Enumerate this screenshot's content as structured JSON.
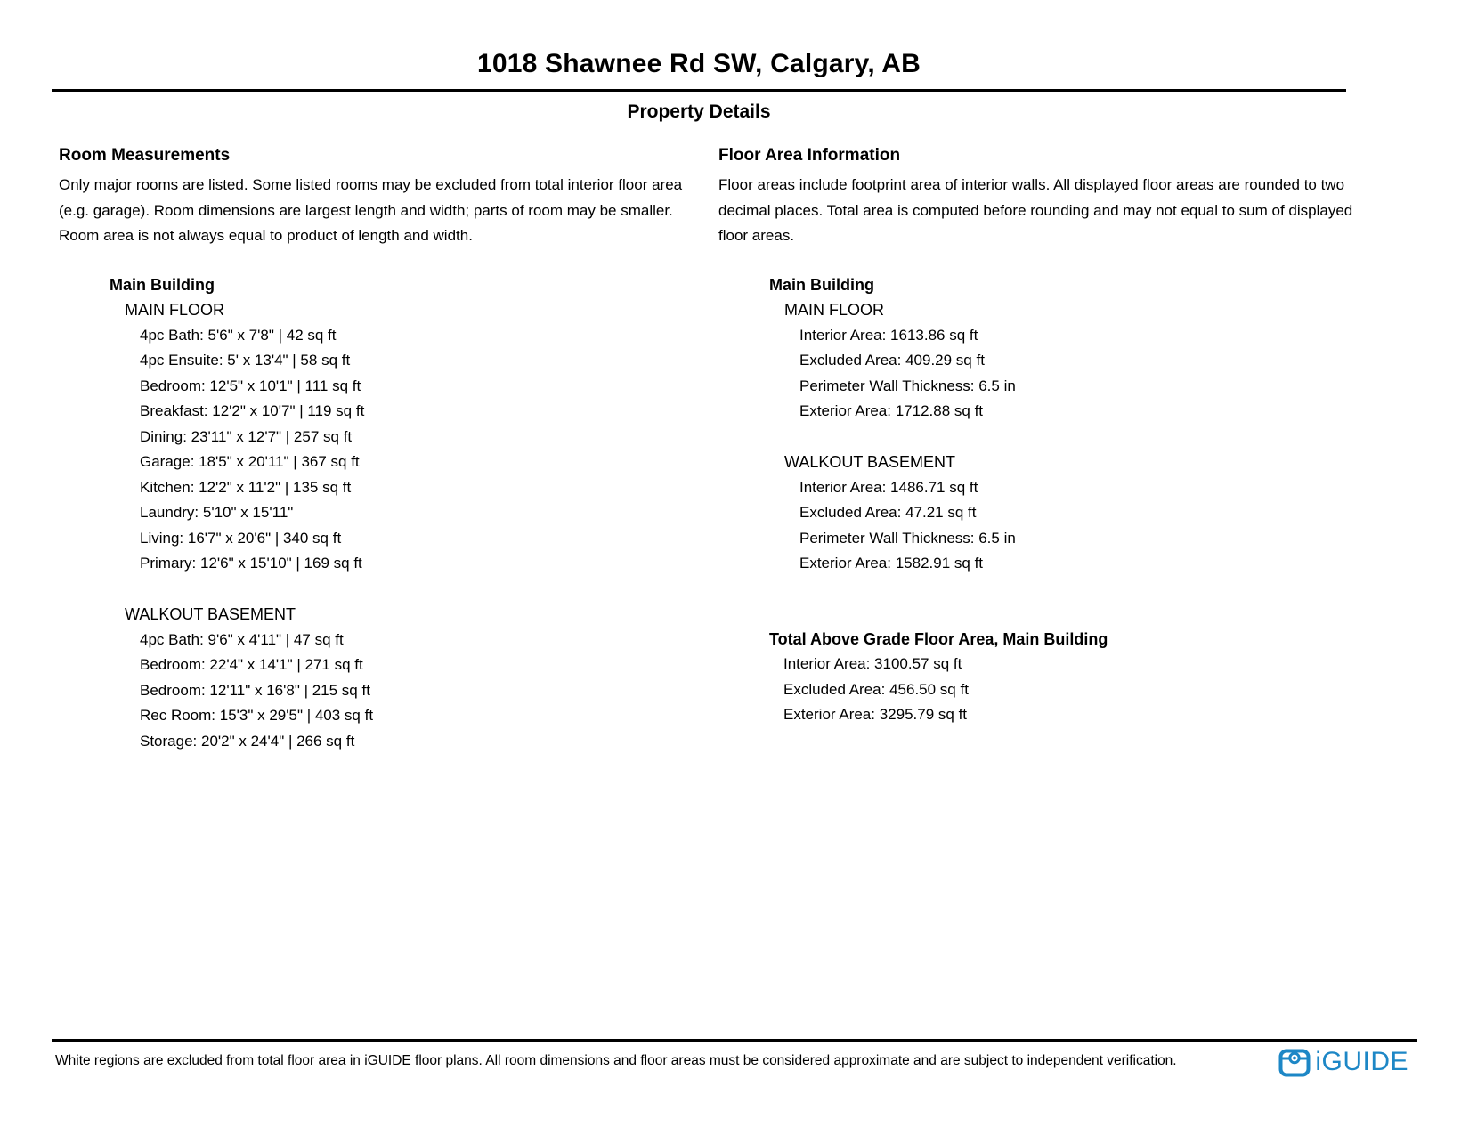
{
  "page": {
    "title": "1018 Shawnee Rd SW, Calgary, AB",
    "subtitle": "Property Details"
  },
  "room_measurements": {
    "heading": "Room Measurements",
    "description_lines": [
      "Only major rooms are listed. Some listed rooms may be excluded from total interior floor area",
      "(e.g. garage). Room dimensions are largest length and width; parts of room may be smaller.",
      "Room area is not always equal to product of length and width."
    ],
    "building": {
      "name": "Main Building",
      "floors": [
        {
          "name": "MAIN FLOOR",
          "rooms": [
            "4pc Bath: 5'6\" x 7'8\" | 42 sq ft",
            "4pc Ensuite: 5' x 13'4\" | 58 sq ft",
            "Bedroom: 12'5\" x 10'1\" | 111 sq ft",
            "Breakfast: 12'2\" x 10'7\" | 119 sq ft",
            "Dining: 23'11\" x 12'7\" | 257 sq ft",
            "Garage: 18'5\" x 20'11\" | 367 sq ft",
            "Kitchen: 12'2\" x 11'2\" | 135 sq ft",
            "Laundry: 5'10\" x 15'11\"",
            "Living: 16'7\" x 20'6\" | 340 sq ft",
            "Primary: 12'6\" x 15'10\" | 169 sq ft"
          ]
        },
        {
          "name": "WALKOUT BASEMENT",
          "rooms": [
            "4pc Bath: 9'6\" x 4'11\" | 47 sq ft",
            "Bedroom: 22'4\" x 14'1\" | 271 sq ft",
            "Bedroom: 12'11\" x 16'8\" | 215 sq ft",
            "Rec Room: 15'3\" x 29'5\" | 403 sq ft",
            "Storage: 20'2\" x 24'4\" | 266 sq ft"
          ]
        }
      ]
    }
  },
  "floor_area_information": {
    "heading": "Floor Area Information",
    "description_lines": [
      "Floor areas include footprint area of interior walls. All displayed floor areas are rounded to two",
      "decimal places. Total area is computed before rounding and may not equal to sum of displayed",
      "floor areas."
    ],
    "building": {
      "name": "Main Building",
      "floors": [
        {
          "name": "MAIN FLOOR",
          "items": [
            "Interior Area: 1613.86 sq ft",
            "Excluded Area: 409.29 sq ft",
            "Perimeter Wall Thickness: 6.5 in",
            "Exterior Area: 1712.88 sq ft"
          ]
        },
        {
          "name": "WALKOUT BASEMENT",
          "items": [
            "Interior Area: 1486.71 sq ft",
            "Excluded Area: 47.21 sq ft",
            "Perimeter Wall Thickness: 6.5 in",
            "Exterior Area: 1582.91 sq ft"
          ]
        }
      ]
    },
    "total": {
      "heading": "Total Above Grade Floor Area, Main Building",
      "items": [
        "Interior Area: 3100.57 sq ft",
        "Excluded Area: 456.50 sq ft",
        "Exterior Area: 3295.79 sq ft"
      ]
    }
  },
  "footer": {
    "disclaimer": "White regions are excluded from total floor area in iGUIDE floor plans. All room dimensions and floor areas must be considered approximate and are subject to independent verification.",
    "logo_icon": "iguide-camera-icon",
    "logo_text": "iGUIDE",
    "logo_color": "#1d87c6"
  }
}
